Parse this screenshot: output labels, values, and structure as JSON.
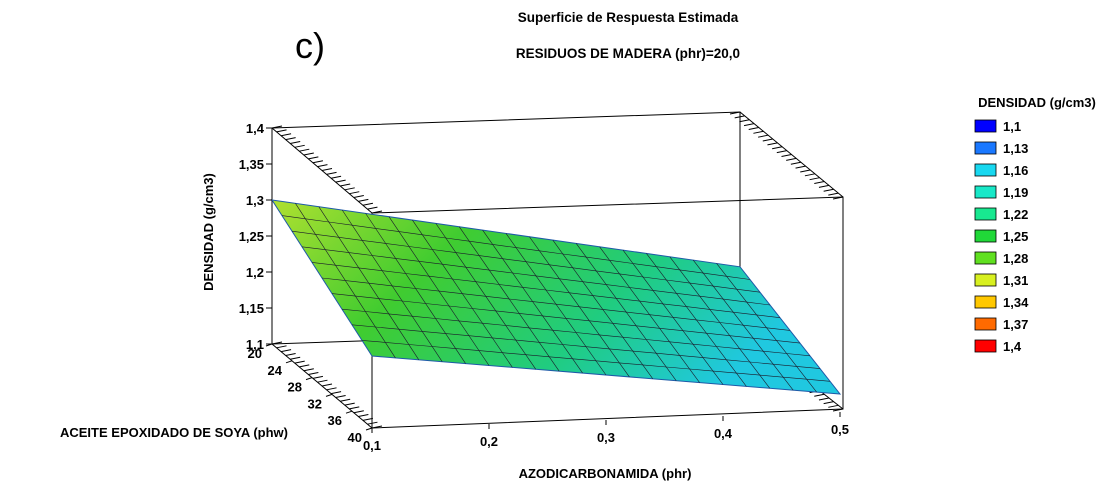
{
  "panel_label": "c)",
  "chart_data": {
    "type": "surface",
    "title": "Superficie de Respuesta Estimada",
    "subtitle": "RESIDUOS DE MADERA (phr)=20,0",
    "xlabel": "AZODICARBONAMIDA (phr)",
    "ylabel": "ACEITE EPOXIDADO DE SOYA (phw)",
    "zlabel": "DENSIDAD (g/cm3)",
    "x_ticks": [
      "0,1",
      "0,2",
      "0,3",
      "0,4",
      "0,5"
    ],
    "y_ticks": [
      "20",
      "24",
      "28",
      "32",
      "36",
      "40"
    ],
    "z_ticks": [
      "1,1",
      "1,15",
      "1,2",
      "1,25",
      "1,3",
      "1,35",
      "1,4"
    ],
    "xlim": [
      0.1,
      0.5
    ],
    "ylim": [
      20,
      40
    ],
    "zlim": [
      1.1,
      1.4
    ],
    "surface_corners": [
      {
        "x": 0.1,
        "y": 20,
        "z": 1.3
      },
      {
        "x": 0.5,
        "y": 20,
        "z": 1.185
      },
      {
        "x": 0.1,
        "y": 40,
        "z": 1.2
      },
      {
        "x": 0.5,
        "y": 40,
        "z": 1.125
      }
    ],
    "legend": {
      "title": "DENSIDAD (g/cm3)",
      "position": "right",
      "items": [
        {
          "label": "1,1",
          "color": "#0000ff"
        },
        {
          "label": "1,13",
          "color": "#1a78ff"
        },
        {
          "label": "1,16",
          "color": "#18d8f0"
        },
        {
          "label": "1,19",
          "color": "#18e8c8"
        },
        {
          "label": "1,22",
          "color": "#18e890"
        },
        {
          "label": "1,25",
          "color": "#20d838"
        },
        {
          "label": "1,28",
          "color": "#60e020"
        },
        {
          "label": "1,31",
          "color": "#d8f020"
        },
        {
          "label": "1,34",
          "color": "#ffc800"
        },
        {
          "label": "1,37",
          "color": "#ff6a00"
        },
        {
          "label": "1,4",
          "color": "#ff0000"
        }
      ]
    }
  }
}
